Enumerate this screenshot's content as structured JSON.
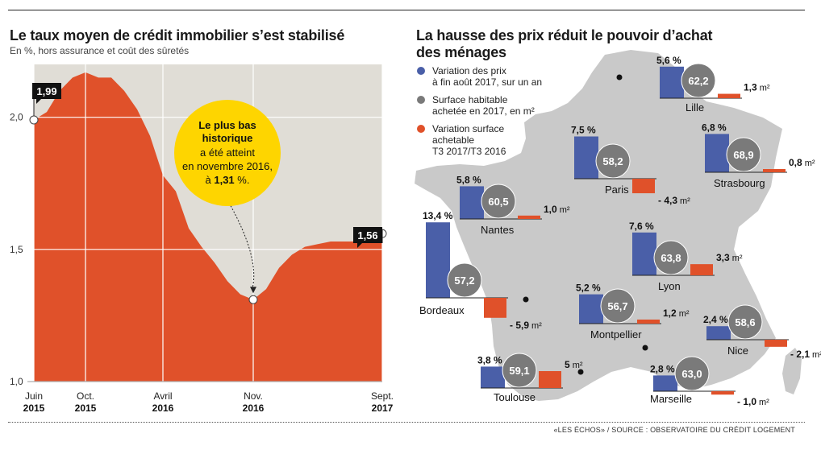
{
  "left": {
    "title": "Le taux moyen de crédit immobilier s’est stabilisé",
    "subtitle": "En %, hors assurance et coût des sûretés",
    "callout": {
      "line1": "Le plus bas",
      "line2": "historique",
      "line3": "a été atteint",
      "line4": "en novembre 2016,",
      "line5_prefix": "à ",
      "line5_value": "1,31",
      "line5_suffix": " %."
    }
  },
  "right": {
    "title_line1": "La hausse des prix réduit le pouvoir d’achat",
    "title_line2": "des ménages",
    "legend": [
      {
        "lines": [
          "Variation des prix",
          "à fin août 2017, sur un an"
        ],
        "color": "#4a5fa8"
      },
      {
        "lines": [
          "Surface habitable",
          "achetée en 2017, en m²"
        ],
        "color": "#7a7a7a"
      },
      {
        "lines": [
          "Variation surface",
          "achetable",
          "T3 2017/T3 2016"
        ],
        "color": "#e0512a"
      }
    ],
    "cities": [
      {
        "name": "Lille",
        "price": "5,6 %",
        "price_val": 5.6,
        "surface": "62,2",
        "delta": "1,3",
        "delta_val": 1.3,
        "unit": "m²"
      },
      {
        "name": "Paris",
        "price": "7,5 %",
        "price_val": 7.5,
        "surface": "58,2",
        "delta": "- 4,3",
        "delta_val": -4.3,
        "unit": "m²"
      },
      {
        "name": "Strasbourg",
        "price": "6,8 %",
        "price_val": 6.8,
        "surface": "68,9",
        "delta": "0,8",
        "delta_val": 0.8,
        "unit": "m²"
      },
      {
        "name": "Nantes",
        "price": "5,8 %",
        "price_val": 5.8,
        "surface": "60,5",
        "delta": "1,0",
        "delta_val": 1.0,
        "unit": "m²"
      },
      {
        "name": "Bordeaux",
        "price": "13,4 %",
        "price_val": 13.4,
        "surface": "57,2",
        "delta": "- 5,9",
        "delta_val": -5.9,
        "unit": "m²"
      },
      {
        "name": "Lyon",
        "price": "7,6 %",
        "price_val": 7.6,
        "surface": "63,8",
        "delta": "3,3",
        "delta_val": 3.3,
        "unit": "m²"
      },
      {
        "name": "Montpellier",
        "price": "5,2 %",
        "price_val": 5.2,
        "surface": "56,7",
        "delta": "1,2",
        "delta_val": 1.2,
        "unit": "m²"
      },
      {
        "name": "Nice",
        "price": "2,4 %",
        "price_val": 2.4,
        "surface": "58,6",
        "delta": "- 2,1",
        "delta_val": -2.1,
        "unit": "m²"
      },
      {
        "name": "Toulouse",
        "price": "3,8 %",
        "price_val": 3.8,
        "surface": "59,1",
        "delta": "5",
        "delta_val": 5.0,
        "unit": "m²"
      },
      {
        "name": "Marseille",
        "price": "2,8 %",
        "price_val": 2.8,
        "surface": "63,0",
        "delta": "- 1,0",
        "delta_val": -1.0,
        "unit": "m²"
      }
    ]
  },
  "source": "«LES ÉCHOS» / SOURCE : OBSERVATOIRE DU CRÉDIT LOGEMENT",
  "colors": {
    "area": "#e0512a",
    "bg": "#e0ddd6",
    "callout": "#fed500",
    "blue": "#4a5fa8",
    "grey": "#7a7a7a",
    "map": "#c9c9c9"
  },
  "chart_data": {
    "type": "area",
    "unit": "%",
    "ylim": [
      1.0,
      2.2
    ],
    "yticks": [
      "1,0",
      "1,5",
      "2,0"
    ],
    "ytick_values": [
      1.0,
      1.5,
      2.0
    ],
    "xticks": [
      {
        "month": "Juin",
        "year": "2015",
        "t": 0
      },
      {
        "month": "Oct.",
        "year": "2015",
        "t": 4
      },
      {
        "month": "Avril",
        "year": "2016",
        "t": 10
      },
      {
        "month": "Nov.",
        "year": "2016",
        "t": 17
      },
      {
        "month": "Sept.",
        "year": "2017",
        "t": 27
      }
    ],
    "x": [
      0,
      1,
      2,
      3,
      4,
      5,
      6,
      7,
      8,
      9,
      10,
      11,
      12,
      13,
      14,
      15,
      16,
      17,
      18,
      19,
      20,
      21,
      22,
      23,
      24,
      25,
      26,
      27
    ],
    "values": [
      1.99,
      2.02,
      2.1,
      2.15,
      2.17,
      2.15,
      2.15,
      2.1,
      2.03,
      1.93,
      1.78,
      1.72,
      1.58,
      1.51,
      1.45,
      1.38,
      1.33,
      1.31,
      1.35,
      1.43,
      1.48,
      1.51,
      1.52,
      1.53,
      1.53,
      1.53,
      1.55,
      1.56
    ],
    "labels": [
      {
        "text": "1,99",
        "t": 0,
        "value": 1.99
      },
      {
        "text": "1,56",
        "t": 27,
        "value": 1.56
      }
    ],
    "min_point": {
      "t": 17,
      "value": 1.31
    }
  }
}
